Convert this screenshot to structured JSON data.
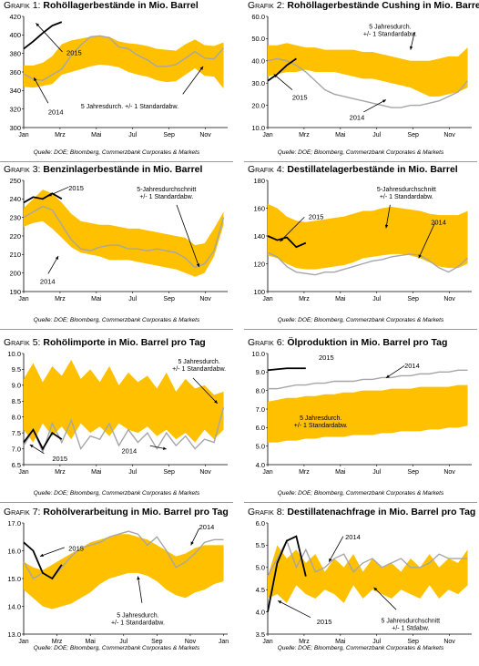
{
  "source_text": "Quelle: DOE; Bloomberg, Commerzbank Corporates & Markets",
  "chart_data": [
    {
      "type": "line",
      "prefix": "Grafik 1:",
      "title": "Rohöllagerbestände in Mio. Barrel",
      "ylim": [
        300,
        420
      ],
      "yticks": [
        300,
        320,
        340,
        360,
        380,
        400,
        420
      ],
      "xticks": [
        "Jan",
        "Mrz",
        "Mai",
        "Jul",
        "Sep",
        "Nov"
      ],
      "band_label": "5 Jahresdurch. +/- 1 Standardabw.",
      "band_upper": [
        367,
        367,
        370,
        377,
        390,
        394,
        396,
        398,
        399,
        398,
        393,
        391,
        390,
        388,
        385,
        384,
        383,
        390,
        395,
        389,
        388,
        392
      ],
      "band_lower": [
        344,
        343,
        345,
        347,
        357,
        360,
        363,
        366,
        368,
        367,
        365,
        360,
        357,
        355,
        351,
        349,
        350,
        357,
        364,
        356,
        355,
        342
      ],
      "series": [
        {
          "name": "2014",
          "color": "#a6a6a6",
          "values": [
            358,
            352,
            351,
            357,
            363,
            378,
            389,
            398,
            399,
            397,
            387,
            385,
            378,
            373,
            366,
            366,
            368,
            375,
            382,
            375,
            374,
            386
          ]
        },
        {
          "name": "2015",
          "color": "#000000",
          "values": [
            385,
            393,
            402,
            410,
            414
          ]
        }
      ],
      "annotations": [
        "2015",
        "2014"
      ]
    },
    {
      "type": "line",
      "prefix": "Grafik 2:",
      "title": "Rohöllagerbestände Cushing in Mio. Barrel",
      "ylim": [
        10,
        60
      ],
      "yticks": [
        10,
        20,
        30,
        40,
        50,
        60
      ],
      "xticks": [
        "Jan",
        "Mrz",
        "Mai",
        "Jul",
        "Sep",
        "Nov"
      ],
      "band_label": "5 Jahresdurch. +/- 1 Standardabw.",
      "band_upper": [
        47,
        47,
        48,
        47,
        46,
        46,
        45,
        45,
        45,
        45,
        44,
        44,
        43,
        42,
        41,
        40,
        40,
        40,
        41,
        42,
        42,
        46
      ],
      "band_lower": [
        33,
        34,
        35,
        35,
        36,
        35,
        35,
        35,
        34,
        33,
        32,
        32,
        31,
        30,
        29,
        28,
        26,
        24,
        24,
        25,
        26,
        28
      ],
      "series": [
        {
          "name": "2014",
          "color": "#a6a6a6",
          "values": [
            40,
            41,
            40,
            38,
            35,
            31,
            27,
            25,
            24,
            23,
            22,
            21,
            20,
            19,
            19,
            20,
            20,
            21,
            22,
            24,
            26,
            31
          ]
        },
        {
          "name": "2015",
          "color": "#000000",
          "values": [
            31,
            34,
            38,
            41
          ]
        }
      ],
      "annotations": [
        "2015",
        "2014"
      ]
    },
    {
      "type": "line",
      "prefix": "Grafik 3:",
      "title": "Benzinlagerbestände in Mio. Barrel",
      "ylim": [
        190,
        250
      ],
      "yticks": [
        190,
        200,
        210,
        220,
        230,
        240,
        250
      ],
      "xticks": [
        "Jan",
        "Mrz",
        "Mai",
        "Jul",
        "Sep",
        "Nov"
      ],
      "band_label": "5-Jahresdurchschnitt +/- 1 Standardabw.",
      "band_upper": [
        235,
        240,
        245,
        243,
        238,
        232,
        228,
        227,
        226,
        226,
        225,
        224,
        224,
        223,
        222,
        221,
        220,
        219,
        215,
        216,
        224,
        233
      ],
      "band_lower": [
        225,
        227,
        228,
        224,
        219,
        214,
        211,
        210,
        209,
        207,
        207,
        207,
        206,
        205,
        204,
        203,
        202,
        200,
        198,
        200,
        209,
        226
      ],
      "series": [
        {
          "name": "2014",
          "color": "#a6a6a6",
          "values": [
            230,
            233,
            236,
            234,
            226,
            218,
            213,
            212,
            214,
            215,
            215,
            213,
            213,
            212,
            213,
            212,
            211,
            208,
            203,
            205,
            212,
            230
          ]
        },
        {
          "name": "2015",
          "color": "#000000",
          "values": [
            238,
            241,
            240,
            243,
            240
          ]
        }
      ],
      "annotations": [
        "2015",
        "2014"
      ]
    },
    {
      "type": "line",
      "prefix": "Grafik 4:",
      "title": "Destillatelagerbestände in Mio. Barrel",
      "ylim": [
        100,
        180
      ],
      "yticks": [
        100,
        120,
        140,
        160,
        180
      ],
      "xticks": [
        "Jan",
        "Mrz",
        "Mai",
        "Jul",
        "Sep",
        "Nov"
      ],
      "band_label": "5-Jahresdurchschnitt +/- 1 Standardabw.",
      "band_upper": [
        163,
        160,
        154,
        151,
        150,
        151,
        152,
        153,
        154,
        156,
        158,
        158,
        160,
        161,
        160,
        159,
        158,
        156,
        155,
        155,
        155,
        158
      ],
      "band_lower": [
        126,
        124,
        120,
        117,
        116,
        116,
        117,
        118,
        119,
        121,
        124,
        125,
        126,
        127,
        127,
        126,
        124,
        121,
        118,
        117,
        117,
        120
      ],
      "series": [
        {
          "name": "2014",
          "color": "#a6a6a6",
          "values": [
            128,
            125,
            118,
            114,
            113,
            112,
            114,
            114,
            116,
            118,
            120,
            122,
            123,
            125,
            126,
            127,
            126,
            122,
            117,
            114,
            118,
            124
          ]
        },
        {
          "name": "2015",
          "color": "#000000",
          "values": [
            140,
            137,
            139,
            132,
            135
          ]
        }
      ],
      "annotations": [
        "2015",
        "2014"
      ]
    },
    {
      "type": "line",
      "prefix": "Grafik 5:",
      "title": "Rohölimporte in Mio. Barrel pro Tag",
      "ylim": [
        6.5,
        10.0
      ],
      "yticks": [
        6.5,
        7.0,
        7.5,
        8.0,
        8.5,
        9.0,
        9.5,
        10.0
      ],
      "xticks": [
        "Jan",
        "Mrz",
        "Mai",
        "Jul",
        "Sep",
        "Nov"
      ],
      "band_label": "5 Jahresdurch. +/- 1 Standardabw.",
      "band_upper": [
        9.2,
        9.7,
        9.1,
        9.6,
        9.3,
        9.8,
        9.2,
        9.5,
        9.1,
        9.6,
        9.0,
        9.4,
        9.1,
        9.3,
        8.9,
        9.4,
        8.8,
        9.2,
        8.9,
        9.0,
        8.7,
        8.8
      ],
      "band_lower": [
        7.6,
        7.2,
        7.8,
        7.4,
        7.7,
        7.3,
        7.8,
        7.5,
        7.7,
        7.4,
        7.8,
        7.6,
        7.5,
        7.7,
        7.4,
        7.6,
        7.3,
        7.5,
        7.2,
        7.6,
        7.3,
        7.6
      ],
      "series": [
        {
          "name": "2014",
          "color": "#a6a6a6",
          "values": [
            7.1,
            7.6,
            6.9,
            7.8,
            7.2,
            7.9,
            7.0,
            7.4,
            7.3,
            7.8,
            7.1,
            7.6,
            7.2,
            7.5,
            7.0,
            7.5,
            7.1,
            7.4,
            7.0,
            7.3,
            7.2,
            8.3
          ]
        },
        {
          "name": "2015",
          "color": "#000000",
          "values": [
            7.2,
            7.6,
            7.0,
            7.5,
            7.3
          ]
        }
      ],
      "annotations": [
        "5 Jahresdurch. +/- 1 Standardabw.",
        "2015",
        "2014"
      ]
    },
    {
      "type": "line",
      "prefix": "Grafik 6:",
      "title": "Ölproduktion in Mio. Barrel pro Tag",
      "ylim": [
        4.0,
        10.0
      ],
      "yticks": [
        4.0,
        5.0,
        6.0,
        7.0,
        8.0,
        9.0,
        10.0
      ],
      "xticks": [
        "Jan",
        "Mrz",
        "Mai",
        "Jul",
        "Sep",
        "Nov"
      ],
      "band_label": "5 Jahresdurch. +/- 1 Standardabw.",
      "band_upper": [
        7.4,
        7.5,
        7.6,
        7.6,
        7.7,
        7.7,
        7.8,
        7.8,
        7.9,
        7.9,
        8.0,
        8.0,
        8.0,
        8.1,
        8.1,
        8.1,
        8.2,
        8.2,
        8.2,
        8.2,
        8.3,
        8.3
      ],
      "band_lower": [
        5.2,
        5.2,
        5.3,
        5.3,
        5.4,
        5.4,
        5.5,
        5.5,
        5.5,
        5.6,
        5.6,
        5.6,
        5.7,
        5.7,
        5.8,
        5.8,
        5.8,
        5.9,
        5.9,
        6.0,
        6.0,
        6.1
      ],
      "series": [
        {
          "name": "2014",
          "color": "#a6a6a6",
          "values": [
            8.1,
            8.1,
            8.2,
            8.3,
            8.3,
            8.4,
            8.4,
            8.5,
            8.5,
            8.5,
            8.6,
            8.6,
            8.7,
            8.7,
            8.8,
            8.8,
            8.9,
            8.9,
            9.0,
            9.0,
            9.1,
            9.1
          ]
        },
        {
          "name": "2015",
          "color": "#000000",
          "values": [
            9.1,
            9.15,
            9.2,
            9.2,
            9.2
          ]
        }
      ],
      "annotations": [
        "2015",
        "2014"
      ]
    },
    {
      "type": "line",
      "prefix": "Grafik 7:",
      "title": "Rohölverarbeitung in Mio. Barrel pro Tag",
      "ylim": [
        13.0,
        17.0
      ],
      "yticks": [
        13.0,
        14.0,
        15.0,
        16.0,
        17.0
      ],
      "xticks": [
        "Jan",
        "Mrz",
        "Mai",
        "Jul",
        "Sep",
        "Nov",
        "Jan"
      ],
      "band_label": "5 Jahresdurch. +/- 1 Standardabw.",
      "band_upper": [
        15.6,
        15.4,
        15.3,
        15.5,
        15.7,
        15.9,
        16.1,
        16.3,
        16.4,
        16.5,
        16.6,
        16.6,
        16.5,
        16.4,
        16.2,
        16.0,
        15.8,
        15.9,
        16.1,
        16.2,
        16.2,
        16.2
      ],
      "band_lower": [
        14.6,
        14.3,
        14.0,
        13.9,
        14.0,
        14.1,
        14.3,
        14.5,
        14.8,
        15.0,
        15.1,
        15.2,
        15.2,
        15.1,
        14.9,
        14.6,
        14.4,
        14.3,
        14.5,
        14.6,
        14.8,
        14.9
      ],
      "series": [
        {
          "name": "2014",
          "color": "#a6a6a6",
          "values": [
            15.6,
            15.0,
            15.2,
            15.0,
            15.4,
            15.8,
            16.1,
            16.2,
            16.3,
            16.5,
            16.6,
            16.7,
            16.6,
            16.2,
            16.5,
            16.0,
            15.4,
            15.6,
            15.9,
            16.3,
            16.4,
            16.4
          ]
        },
        {
          "name": "2015",
          "color": "#000000",
          "values": [
            16.3,
            16.0,
            15.2,
            15.0,
            15.5
          ]
        }
      ],
      "annotations": [
        "2015",
        "2014"
      ]
    },
    {
      "type": "line",
      "prefix": "Grafik 8:",
      "title": "Destillatenachfrage in Mio. Barrel pro Tag",
      "ylim": [
        3.5,
        6.0
      ],
      "yticks": [
        3.5,
        4.0,
        4.5,
        5.0,
        5.5,
        6.0
      ],
      "xticks": [
        "Jan",
        "Mrz",
        "Mai",
        "Jul",
        "Sep",
        "Nov"
      ],
      "band_label": "5 Jahresdurchschnitt +/- 1 Stdabw.",
      "band_upper": [
        4.8,
        5.5,
        5.2,
        5.4,
        5.1,
        5.3,
        4.9,
        5.2,
        5.0,
        5.3,
        4.9,
        5.2,
        5.0,
        5.1,
        4.9,
        5.2,
        5.0,
        5.3,
        5.0,
        5.2,
        5.1,
        5.4
      ],
      "band_lower": [
        4.3,
        4.4,
        4.2,
        4.6,
        4.4,
        4.3,
        4.5,
        4.4,
        4.2,
        4.6,
        4.3,
        4.5,
        4.4,
        4.3,
        4.5,
        4.4,
        4.3,
        4.6,
        4.3,
        4.5,
        4.4,
        4.6
      ],
      "series": [
        {
          "name": "2014",
          "color": "#a6a6a6",
          "values": [
            4.8,
            5.2,
            5.6,
            5.0,
            5.4,
            4.9,
            5.0,
            5.2,
            5.3,
            4.9,
            5.1,
            5.2,
            5.0,
            5.1,
            5.2,
            5.0,
            5.0,
            5.1,
            5.3,
            5.2,
            5.2,
            5.2
          ]
        },
        {
          "name": "2015",
          "color": "#000000",
          "values": [
            4.0,
            5.1,
            5.6,
            5.7,
            4.8
          ]
        }
      ],
      "annotations": [
        "2014",
        "2015"
      ]
    }
  ]
}
